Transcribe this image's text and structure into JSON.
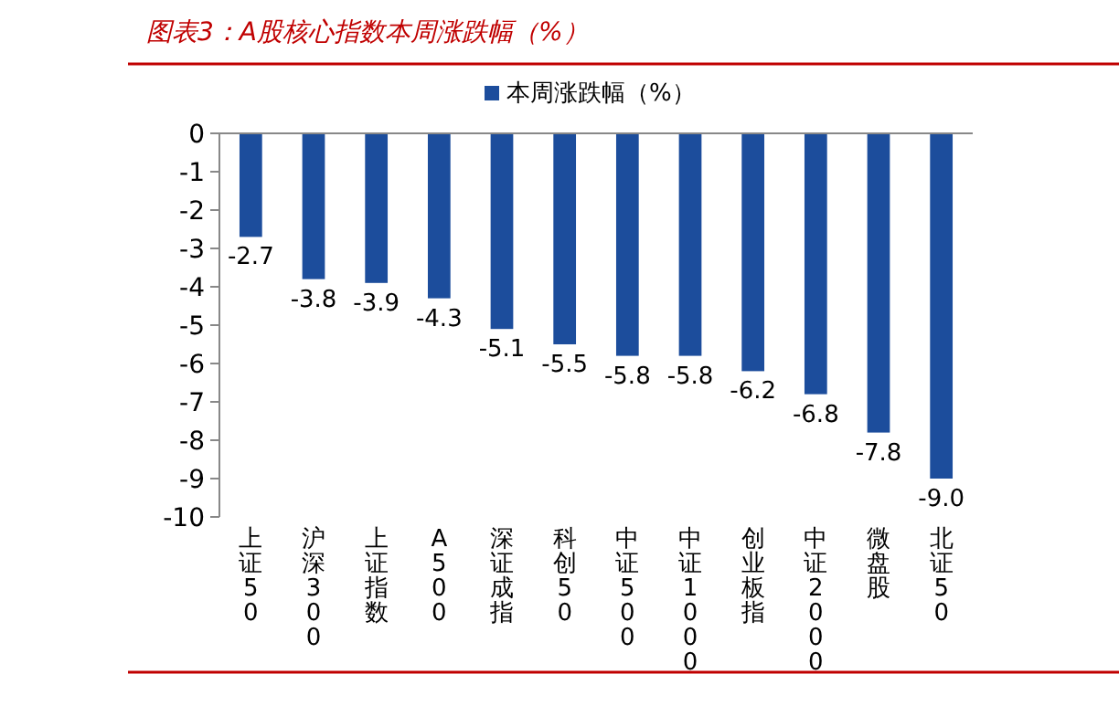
{
  "chart_data": {
    "type": "bar",
    "title": "图表3：A股核心指数本周涨跌幅（%）",
    "categories": [
      "上证50",
      "沪深300",
      "上证指数",
      "A500",
      "深证成指",
      "科创50",
      "中证500",
      "中证1000",
      "创业板指",
      "中证2000",
      "微盘股",
      "北证50"
    ],
    "series": [
      {
        "name": "本周涨跌幅（%）",
        "color": "#1c4d9c",
        "values": [
          -2.7,
          -3.8,
          -3.9,
          -4.3,
          -5.1,
          -5.5,
          -5.8,
          -5.8,
          -6.2,
          -6.8,
          -7.8,
          -9.0
        ]
      }
    ],
    "ylim": [
      -10,
      0
    ],
    "yticks": [
      0,
      -1,
      -2,
      -3,
      -4,
      -5,
      -6,
      -7,
      -8,
      -9,
      -10
    ],
    "value_labels": [
      "-2.7",
      "-3.8",
      "-3.9",
      "-4.3",
      "-5.1",
      "-5.5",
      "-5.8",
      "-5.8",
      "-6.2",
      "-6.8",
      "-7.8",
      "-9.0"
    ],
    "legend": "top",
    "grid": false
  }
}
